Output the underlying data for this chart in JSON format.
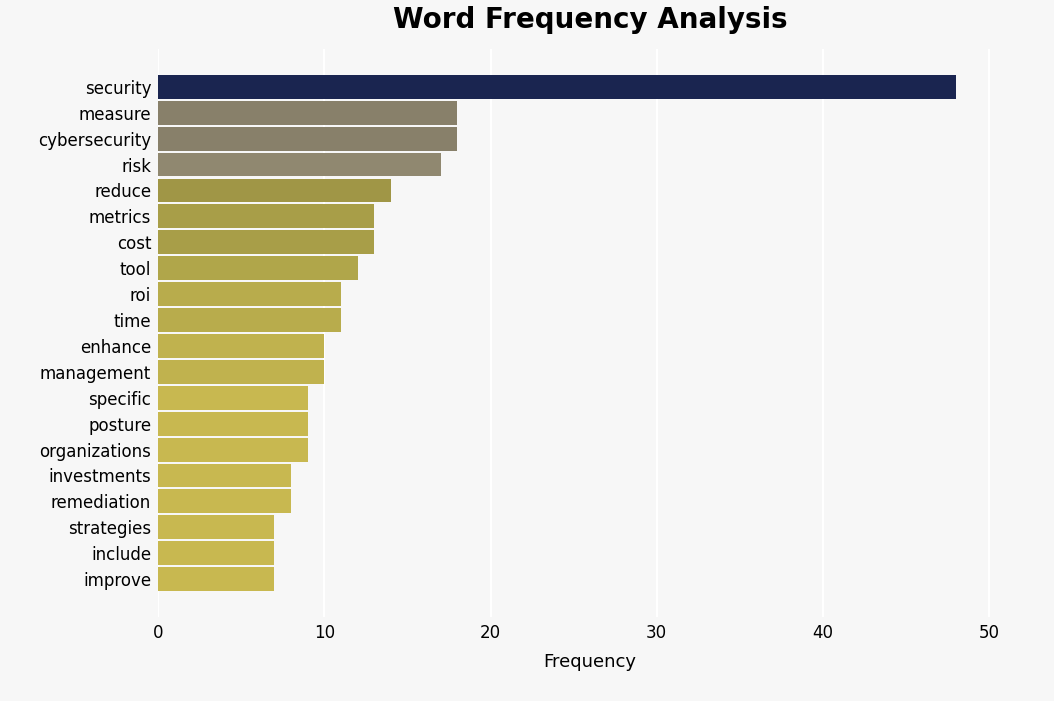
{
  "categories": [
    "improve",
    "include",
    "strategies",
    "remediation",
    "investments",
    "organizations",
    "posture",
    "specific",
    "management",
    "enhance",
    "time",
    "roi",
    "tool",
    "cost",
    "metrics",
    "reduce",
    "risk",
    "cybersecurity",
    "measure",
    "security"
  ],
  "values": [
    7,
    7,
    7,
    8,
    8,
    9,
    9,
    9,
    10,
    10,
    11,
    11,
    12,
    13,
    13,
    14,
    17,
    18,
    18,
    48
  ],
  "bar_colors": [
    "#c8b850",
    "#c8b850",
    "#c8b850",
    "#c8b850",
    "#c8b850",
    "#c8b850",
    "#c8b850",
    "#c8b850",
    "#c0b24e",
    "#c0b24e",
    "#b8ac4c",
    "#b8ac4c",
    "#b0a64a",
    "#a89e48",
    "#a89e48",
    "#a09646",
    "#908870",
    "#88806a",
    "#88806a",
    "#1a2550"
  ],
  "title": "Word Frequency Analysis",
  "xlabel": "Frequency",
  "xlim": [
    0,
    52
  ],
  "xticks": [
    0,
    10,
    20,
    30,
    40,
    50
  ],
  "background_color": "#f7f7f7",
  "plot_bg_color": "#f7f7f7",
  "title_fontsize": 20,
  "axis_label_fontsize": 13,
  "tick_fontsize": 12
}
